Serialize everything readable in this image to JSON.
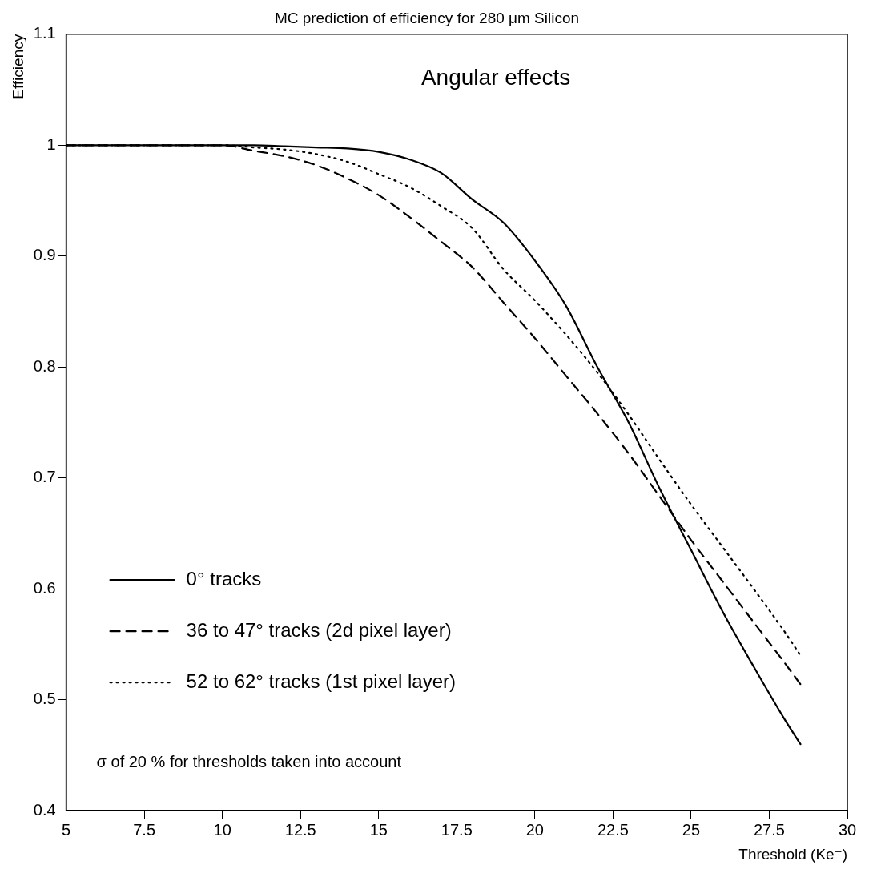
{
  "chart_data": {
    "type": "line",
    "title": "MC prediction of efficiency for 280 μm Silicon",
    "xlabel": "Threshold (Ke⁻)",
    "ylabel": "Efficiency",
    "x": [
      5,
      7.5,
      10,
      11,
      12,
      13,
      14,
      15,
      16,
      17,
      18,
      19,
      20,
      21,
      22,
      23,
      24,
      25,
      26,
      27,
      28,
      28.5
    ],
    "series": [
      {
        "name": "0° tracks",
        "color": "#000000",
        "line_style": "solid",
        "values": [
          1,
          1,
          1,
          1,
          0.999,
          0.998,
          0.997,
          0.994,
          0.987,
          0.975,
          0.951,
          0.93,
          0.896,
          0.855,
          0.8,
          0.75,
          0.69,
          0.635,
          0.58,
          0.53,
          0.482,
          0.46
        ]
      },
      {
        "name": "36 to 47° tracks (2d pixel layer)",
        "color": "#000000",
        "line_style": "dashed",
        "values": [
          1,
          1,
          1,
          0.995,
          0.99,
          0.982,
          0.97,
          0.955,
          0.935,
          0.913,
          0.89,
          0.858,
          0.826,
          0.792,
          0.758,
          0.722,
          0.683,
          0.644,
          0.607,
          0.57,
          0.533,
          0.514
        ]
      },
      {
        "name": "52 to 62° tracks (1st pixel layer)",
        "color": "#000000",
        "line_style": "dotted",
        "values": [
          1,
          1,
          1,
          0.998,
          0.996,
          0.992,
          0.985,
          0.974,
          0.962,
          0.945,
          0.925,
          0.888,
          0.86,
          0.829,
          0.795,
          0.757,
          0.716,
          0.676,
          0.638,
          0.6,
          0.561,
          0.54
        ]
      }
    ],
    "xlim": [
      5,
      30
    ],
    "xticks": [
      5,
      7.5,
      10,
      12.5,
      15,
      17.5,
      20,
      22.5,
      25,
      27.5,
      30
    ],
    "ylim": [
      0.4,
      1.1
    ],
    "yticks": [
      0.4,
      0.5,
      0.6,
      0.7,
      0.8,
      0.9,
      1,
      1.1
    ],
    "grid": false,
    "legend": "bottom left",
    "marker": "none",
    "annotations": [
      "Angular effects",
      "σ of 20 % for thresholds taken into account"
    ]
  }
}
